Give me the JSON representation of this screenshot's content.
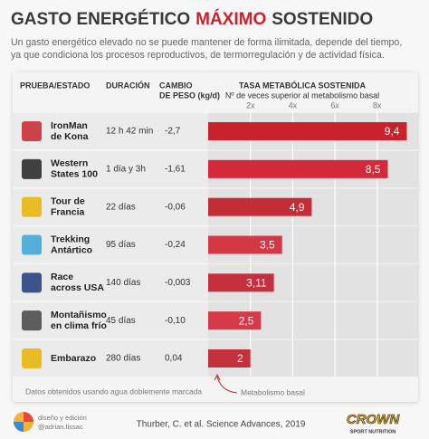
{
  "header": {
    "title_start": "GASTO ENERGÉTICO",
    "title_highlight": "MÁXIMO",
    "title_end": "SOSTENIDO",
    "subtitle": [
      "Un gasto energético elevado no se puede mantener de forma ilimitada, depende del tiempo,",
      "ya que condiciona los procesos reproductivos, de termorregulación y de actividad física."
    ]
  },
  "table": {
    "columns": {
      "name": "PRUEBA/ESTADO",
      "duration": "DURACIÓN",
      "weight": [
        "CAMBIO",
        "DE PESO (kg/d)"
      ]
    },
    "rows": [
      {
        "name": [
          "IronMan",
          "de Kona"
        ],
        "duration": "12 h 42 min",
        "weight": "-2,7"
      },
      {
        "name": [
          "Western",
          "States 100"
        ],
        "duration": "1 día y 3h",
        "weight": "-1,61"
      },
      {
        "name": [
          "Tour de",
          "Francia"
        ],
        "duration": "22 días",
        "weight": "-0,06"
      },
      {
        "name": [
          "Trekking",
          "Antártico"
        ],
        "duration": "95 días",
        "weight": "-0,24"
      },
      {
        "name": [
          "Race",
          "across USA"
        ],
        "duration": "140 días",
        "weight": "-0,003"
      },
      {
        "name": [
          "Montañismo",
          "en clima frío"
        ],
        "duration": "45 días",
        "weight": "-0,10"
      },
      {
        "name": [
          "Embarazo"
        ],
        "duration": "280 días",
        "weight": "0,04"
      }
    ]
  },
  "chart_data": {
    "type": "bar",
    "orientation": "horizontal",
    "title": "TASA METABÓLICA SOSTENIDA",
    "subtitle": "Nº de veces superior al metabolismo basal",
    "values": [
      9.4,
      8.5,
      4.9,
      3.5,
      3.11,
      2.5,
      2
    ],
    "value_labels": [
      "9,4",
      "8,5",
      "4,9",
      "3,5",
      "3,11",
      "2,5",
      "2"
    ],
    "colors": [
      "#c8232c",
      "#d3293a",
      "#c32d35",
      "#d43845",
      "#c5303d",
      "#d63a49",
      "#c2313c"
    ],
    "xlim": [
      0,
      10
    ],
    "xticks": [
      {
        "value": 2,
        "label": "2x"
      },
      {
        "value": 4,
        "label": "4x"
      },
      {
        "value": 6,
        "label": "6x"
      },
      {
        "value": 8,
        "label": "8x"
      }
    ],
    "grid": true,
    "annotation": "Metabolismo basal"
  },
  "footer": {
    "note": "Datos obtenidos usando agua doblemente marcada",
    "credit": [
      "diseño y edición",
      "@adrian.fissac"
    ],
    "source": "Thurber, C. et al. Science Advances, 2019",
    "brand": "CROWN",
    "brand_sub": "SPORT NUTRITION"
  }
}
